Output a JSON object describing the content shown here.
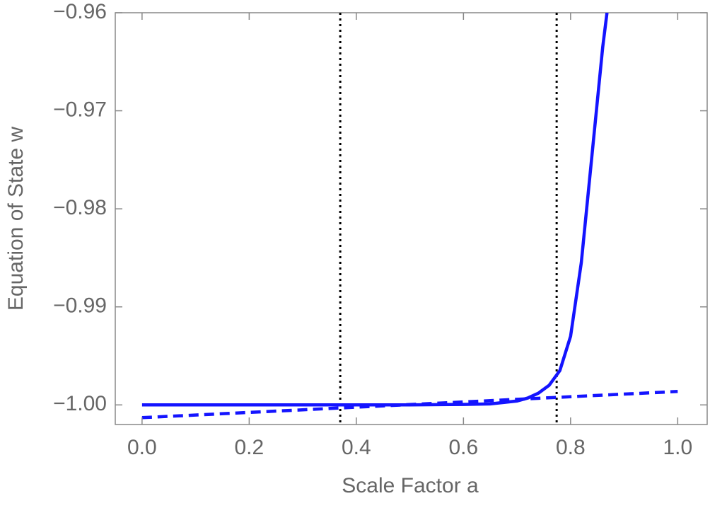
{
  "chart_data": {
    "type": "line",
    "xlabel": "Scale Factor  a",
    "ylabel": "Equation of State  w",
    "xlim": [
      -0.05,
      1.055
    ],
    "ylim": [
      -1.002,
      -0.96
    ],
    "xticks": [
      {
        "value": 0,
        "label": "0.0"
      },
      0.2,
      0.4,
      0.6,
      0.8,
      {
        "value": 1,
        "label": "1.0"
      }
    ],
    "yticks": [
      {
        "value": -1,
        "label": "−1.00"
      },
      {
        "value": -0.99,
        "label": "−0.99"
      },
      {
        "value": -0.98,
        "label": "−0.98"
      },
      {
        "value": -0.97,
        "label": "−0.97"
      },
      {
        "value": -0.96,
        "label": "−0.96"
      }
    ],
    "vlines": [
      0.37,
      0.774
    ],
    "vline_color": "#000000",
    "series": [
      {
        "color": "#1414ff",
        "style": "solid",
        "x": [
          0.0,
          0.3,
          0.5,
          0.6,
          0.65,
          0.7,
          0.72,
          0.74,
          0.76,
          0.78,
          0.8,
          0.82,
          0.84,
          0.85,
          0.86,
          0.868
        ],
        "values": [
          -1.0,
          -1.0,
          -1.0,
          -0.99995,
          -0.9999,
          -0.9996,
          -0.9993,
          -0.9988,
          -0.998,
          -0.9965,
          -0.993,
          -0.9855,
          -0.9745,
          -0.969,
          -0.9635,
          -0.96
        ]
      },
      {
        "color": "#1414ff",
        "style": "dashed",
        "x": [
          0.0,
          1.0
        ],
        "values": [
          -1.0013,
          -0.99863
        ]
      }
    ]
  }
}
